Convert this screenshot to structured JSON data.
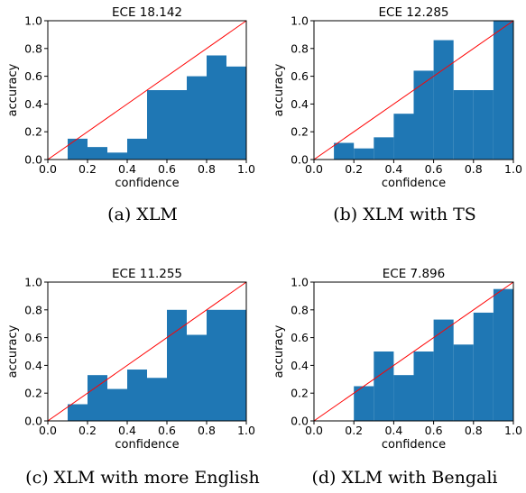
{
  "chart_data": [
    {
      "type": "bar",
      "title": "ECE 18.142",
      "caption": "(a) XLM",
      "xlabel": "confidence",
      "ylabel": "accuracy",
      "xlim": [
        0.0,
        1.0
      ],
      "ylim": [
        0.0,
        1.0
      ],
      "xticks": [
        "0.0",
        "0.2",
        "0.4",
        "0.6",
        "0.8",
        "1.0"
      ],
      "yticks": [
        "0.0",
        "0.2",
        "0.4",
        "0.6",
        "0.8",
        "1.0"
      ],
      "bin_edges": [
        0.0,
        0.1,
        0.2,
        0.3,
        0.4,
        0.5,
        0.6,
        0.7,
        0.8,
        0.9,
        1.0
      ],
      "values": [
        0.0,
        0.15,
        0.09,
        0.05,
        0.15,
        0.5,
        0.5,
        0.6,
        0.75,
        0.67
      ],
      "diagonal": true,
      "bar_color": "#1f77b4",
      "diagonal_color": "#ff0000"
    },
    {
      "type": "bar",
      "title": "ECE 12.285",
      "caption": "(b) XLM with TS",
      "xlabel": "confidence",
      "ylabel": "accuracy",
      "xlim": [
        0.0,
        1.0
      ],
      "ylim": [
        0.0,
        1.0
      ],
      "xticks": [
        "0.0",
        "0.2",
        "0.4",
        "0.6",
        "0.8",
        "1.0"
      ],
      "yticks": [
        "0.0",
        "0.2",
        "0.4",
        "0.6",
        "0.8",
        "1.0"
      ],
      "bin_edges": [
        0.0,
        0.1,
        0.2,
        0.3,
        0.4,
        0.5,
        0.6,
        0.7,
        0.8,
        0.9,
        1.0
      ],
      "values": [
        0.0,
        0.12,
        0.08,
        0.16,
        0.33,
        0.64,
        0.86,
        0.5,
        0.5,
        1.0
      ],
      "diagonal": true,
      "bar_color": "#1f77b4",
      "diagonal_color": "#ff0000"
    },
    {
      "type": "bar",
      "title": "ECE 11.255",
      "caption": "(c) XLM with more English",
      "xlabel": "confidence",
      "ylabel": "accuracy",
      "xlim": [
        0.0,
        1.0
      ],
      "ylim": [
        0.0,
        1.0
      ],
      "xticks": [
        "0.0",
        "0.2",
        "0.4",
        "0.6",
        "0.8",
        "1.0"
      ],
      "yticks": [
        "0.0",
        "0.2",
        "0.4",
        "0.6",
        "0.8",
        "1.0"
      ],
      "bin_edges": [
        0.0,
        0.1,
        0.2,
        0.3,
        0.4,
        0.5,
        0.6,
        0.7,
        0.8,
        0.9,
        1.0
      ],
      "values": [
        0.0,
        0.12,
        0.33,
        0.23,
        0.37,
        0.31,
        0.8,
        0.62,
        0.8,
        0.8
      ],
      "diagonal": true,
      "bar_color": "#1f77b4",
      "diagonal_color": "#ff0000"
    },
    {
      "type": "bar",
      "title": "ECE 7.896",
      "caption": "(d) XLM with Bengali",
      "xlabel": "confidence",
      "ylabel": "accuracy",
      "xlim": [
        0.0,
        1.0
      ],
      "ylim": [
        0.0,
        1.0
      ],
      "xticks": [
        "0.0",
        "0.2",
        "0.4",
        "0.6",
        "0.8",
        "1.0"
      ],
      "yticks": [
        "0.0",
        "0.2",
        "0.4",
        "0.6",
        "0.8",
        "1.0"
      ],
      "bin_edges": [
        0.0,
        0.1,
        0.2,
        0.3,
        0.4,
        0.5,
        0.6,
        0.7,
        0.8,
        0.9,
        1.0
      ],
      "values": [
        0.0,
        0.0,
        0.25,
        0.5,
        0.33,
        0.5,
        0.73,
        0.55,
        0.78,
        0.95
      ],
      "diagonal": true,
      "bar_color": "#1f77b4",
      "diagonal_color": "#ff0000"
    }
  ]
}
